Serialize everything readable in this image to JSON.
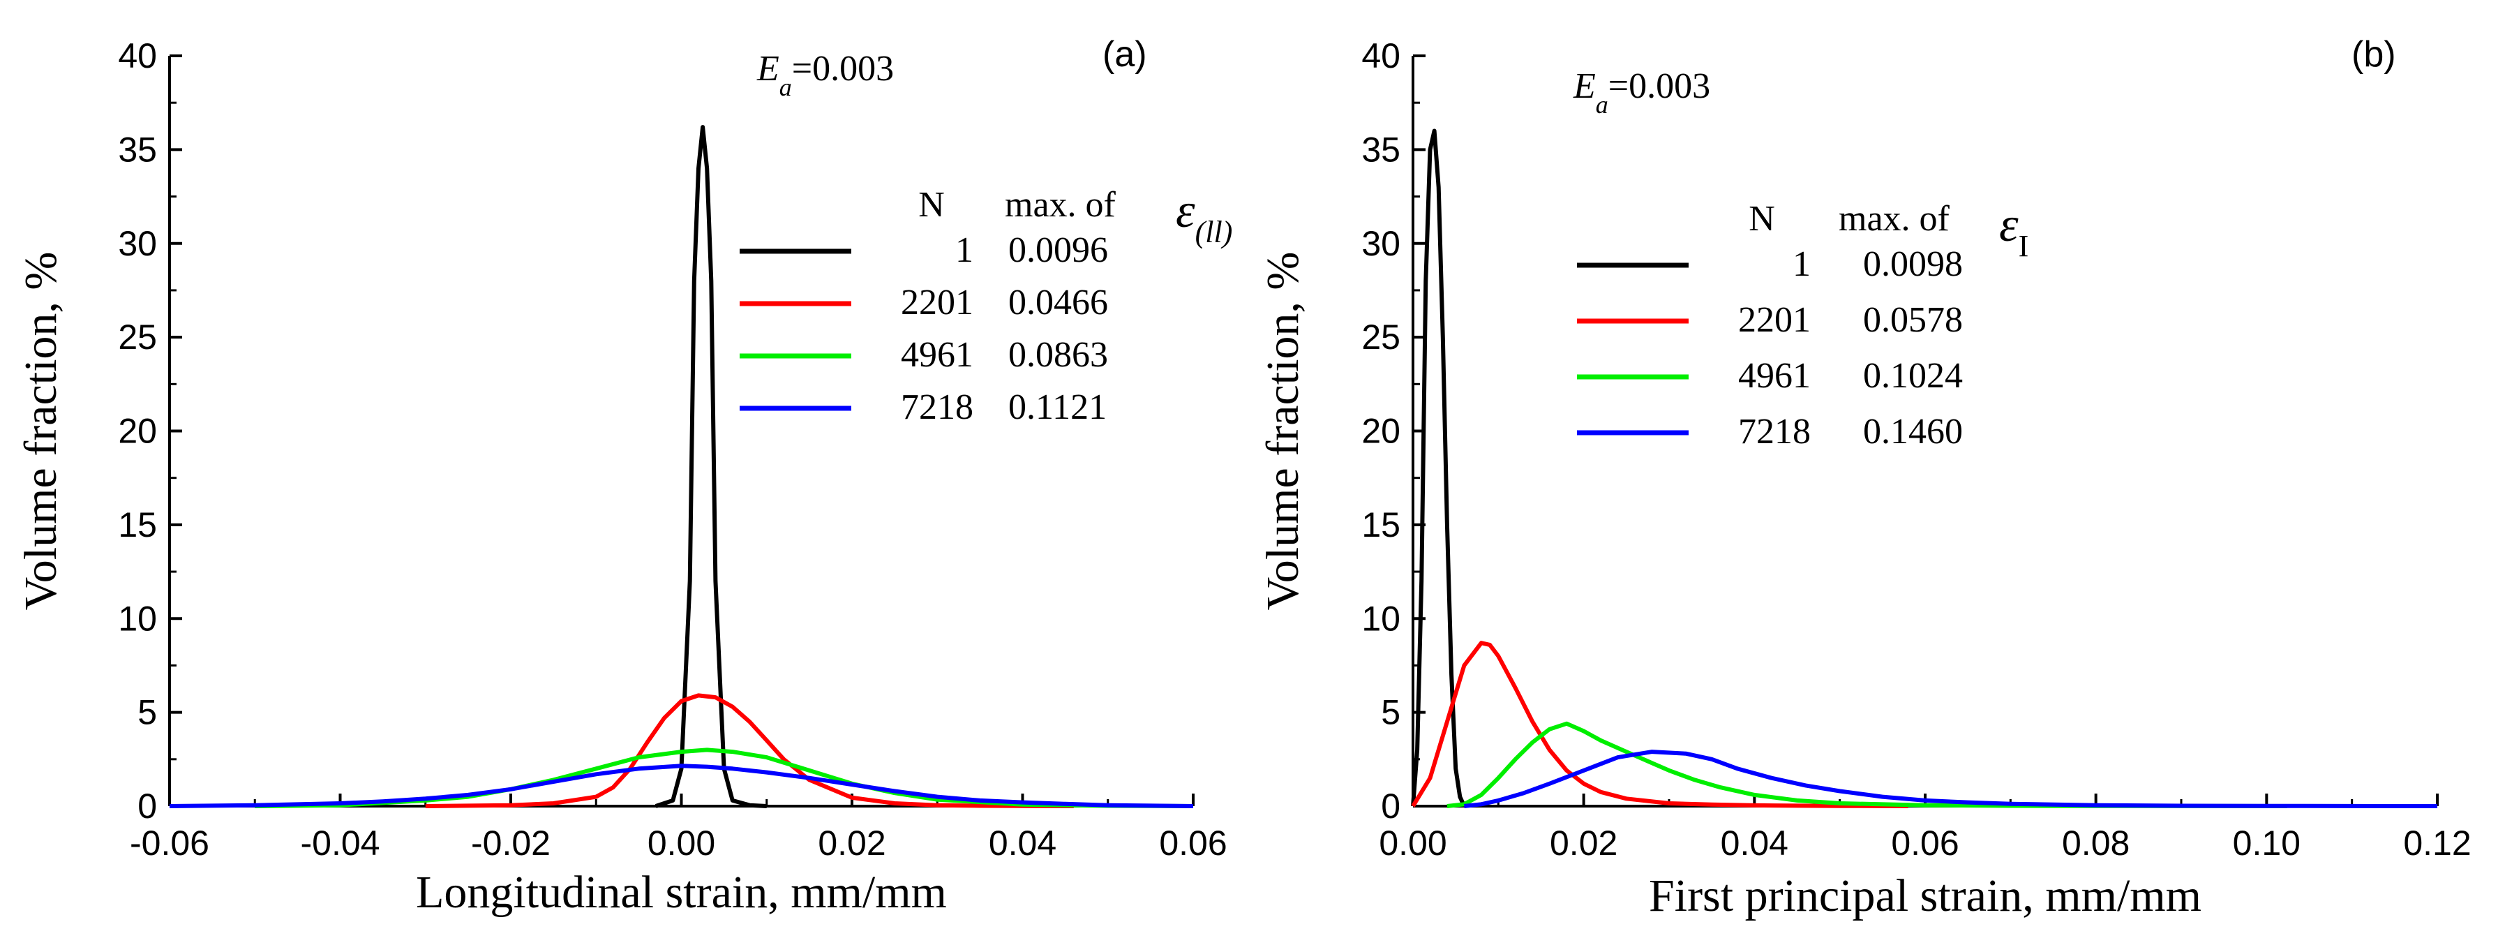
{
  "chart_data": [
    {
      "type": "line",
      "panel_label": "(a)",
      "xlabel": "Longitudinal strain, mm/mm",
      "ylabel": "Volume fraction, %",
      "xlim": [
        -0.06,
        0.06
      ],
      "ylim": [
        0,
        40
      ],
      "x_ticks": [
        -0.06,
        -0.04,
        -0.02,
        0.0,
        0.02,
        0.04,
        0.06
      ],
      "x_tick_labels": [
        "-0.06",
        "-0.04",
        "-0.02",
        "0.00",
        "0.02",
        "0.04",
        "0.06"
      ],
      "y_ticks": [
        0,
        5,
        10,
        15,
        20,
        25,
        30,
        35,
        40
      ],
      "y_tick_labels": [
        "0",
        "5",
        "10",
        "15",
        "20",
        "25",
        "30",
        "35",
        "40"
      ],
      "annotation": {
        "prefix": "E",
        "subscript": "a",
        "suffix": "=0.003"
      },
      "legend": {
        "header_n": "N",
        "header_max": "max. of",
        "header_symbol": "ε",
        "header_subscript": "(ll)"
      },
      "series": [
        {
          "name": "1",
          "max_label": "0.0096",
          "color": "#000000",
          "x": [
            -0.003,
            -0.001,
            0.0,
            0.001,
            0.0015,
            0.002,
            0.0025,
            0.003,
            0.0035,
            0.004,
            0.005,
            0.006,
            0.008,
            0.01
          ],
          "y": [
            0,
            0.3,
            2,
            12,
            28,
            34,
            36.2,
            34,
            28,
            12,
            2,
            0.3,
            0.05,
            0
          ]
        },
        {
          "name": "2201",
          "max_label": "0.0466",
          "color": "#ff0000",
          "x": [
            -0.03,
            -0.02,
            -0.015,
            -0.01,
            -0.008,
            -0.006,
            -0.004,
            -0.002,
            0.0,
            0.002,
            0.004,
            0.006,
            0.008,
            0.01,
            0.012,
            0.015,
            0.02,
            0.025,
            0.03,
            0.035,
            0.04,
            0.046
          ],
          "y": [
            0,
            0.05,
            0.15,
            0.5,
            1.0,
            2.0,
            3.4,
            4.7,
            5.6,
            5.9,
            5.8,
            5.3,
            4.5,
            3.5,
            2.5,
            1.4,
            0.45,
            0.15,
            0.05,
            0.02,
            0.01,
            0
          ]
        },
        {
          "name": "4961",
          "max_label": "0.0863",
          "color": "#00ee00",
          "x": [
            -0.05,
            -0.04,
            -0.03,
            -0.025,
            -0.02,
            -0.015,
            -0.01,
            -0.005,
            0.0,
            0.003,
            0.006,
            0.01,
            0.015,
            0.02,
            0.025,
            0.03,
            0.04,
            0.05,
            0.06
          ],
          "y": [
            0,
            0.05,
            0.3,
            0.5,
            0.9,
            1.4,
            2.0,
            2.6,
            2.9,
            3.0,
            2.9,
            2.6,
            1.9,
            1.2,
            0.7,
            0.35,
            0.08,
            0.02,
            0
          ]
        },
        {
          "name": "7218",
          "max_label": "0.1121",
          "color": "#0000ff",
          "x": [
            -0.06,
            -0.05,
            -0.04,
            -0.035,
            -0.03,
            -0.025,
            -0.02,
            -0.015,
            -0.01,
            -0.005,
            0.0,
            0.003,
            0.006,
            0.01,
            0.015,
            0.02,
            0.025,
            0.03,
            0.035,
            0.04,
            0.045,
            0.05,
            0.06
          ],
          "y": [
            0,
            0.05,
            0.15,
            0.25,
            0.4,
            0.6,
            0.9,
            1.3,
            1.7,
            2.0,
            2.15,
            2.1,
            2.0,
            1.8,
            1.5,
            1.15,
            0.8,
            0.5,
            0.3,
            0.2,
            0.12,
            0.05,
            0
          ]
        }
      ]
    },
    {
      "type": "line",
      "panel_label": "(b)",
      "xlabel": "First principal strain, mm/mm",
      "ylabel": "Volume fraction, %",
      "xlim": [
        0,
        0.12
      ],
      "ylim": [
        0,
        40
      ],
      "x_ticks": [
        0.0,
        0.02,
        0.04,
        0.06,
        0.08,
        0.1,
        0.12
      ],
      "x_tick_labels": [
        "0.00",
        "0.02",
        "0.04",
        "0.06",
        "0.08",
        "0.10",
        "0.12"
      ],
      "y_ticks": [
        0,
        5,
        10,
        15,
        20,
        25,
        30,
        35,
        40
      ],
      "y_tick_labels": [
        "0",
        "5",
        "10",
        "15",
        "20",
        "25",
        "30",
        "35",
        "40"
      ],
      "annotation": {
        "prefix": "E",
        "subscript": "a",
        "suffix": "=0.003"
      },
      "legend": {
        "header_n": "N",
        "header_max": "max. of",
        "header_symbol": "ε",
        "header_subscript": "I"
      },
      "series": [
        {
          "name": "1",
          "max_label": "0.0098",
          "color": "#000000",
          "x": [
            0.0,
            0.0005,
            0.001,
            0.0015,
            0.002,
            0.0025,
            0.003,
            0.0035,
            0.004,
            0.0045,
            0.005,
            0.0055,
            0.006
          ],
          "y": [
            0,
            3,
            12,
            28,
            35,
            36,
            33,
            25,
            15,
            7,
            2,
            0.5,
            0
          ]
        },
        {
          "name": "2201",
          "max_label": "0.0578",
          "color": "#ff0000",
          "x": [
            0.0,
            0.002,
            0.004,
            0.006,
            0.008,
            0.009,
            0.01,
            0.012,
            0.014,
            0.016,
            0.018,
            0.02,
            0.022,
            0.025,
            0.03,
            0.035,
            0.04,
            0.05,
            0.058
          ],
          "y": [
            0,
            1.5,
            4.5,
            7.5,
            8.7,
            8.6,
            8.0,
            6.3,
            4.5,
            3.0,
            1.9,
            1.2,
            0.75,
            0.4,
            0.15,
            0.08,
            0.04,
            0.01,
            0
          ]
        },
        {
          "name": "4961",
          "max_label": "0.1024",
          "color": "#00ee00",
          "x": [
            0.004,
            0.006,
            0.008,
            0.01,
            0.012,
            0.014,
            0.016,
            0.018,
            0.02,
            0.022,
            0.025,
            0.028,
            0.03,
            0.033,
            0.036,
            0.04,
            0.045,
            0.05,
            0.06,
            0.07,
            0.08,
            0.09,
            0.1024
          ],
          "y": [
            0,
            0.1,
            0.6,
            1.5,
            2.5,
            3.4,
            4.1,
            4.4,
            4.0,
            3.5,
            2.9,
            2.3,
            1.9,
            1.4,
            1.0,
            0.6,
            0.3,
            0.15,
            0.05,
            0.02,
            0.01,
            0.005,
            0
          ]
        },
        {
          "name": "7218",
          "max_label": "0.1460",
          "color": "#0000ff",
          "x": [
            0.006,
            0.008,
            0.01,
            0.013,
            0.016,
            0.02,
            0.024,
            0.028,
            0.032,
            0.035,
            0.038,
            0.042,
            0.046,
            0.05,
            0.055,
            0.06,
            0.065,
            0.07,
            0.08,
            0.09,
            0.1,
            0.11,
            0.12
          ],
          "y": [
            0,
            0.1,
            0.3,
            0.7,
            1.2,
            1.9,
            2.6,
            2.9,
            2.8,
            2.5,
            2.0,
            1.5,
            1.1,
            0.8,
            0.5,
            0.3,
            0.2,
            0.12,
            0.05,
            0.02,
            0.01,
            0.005,
            0
          ]
        }
      ]
    }
  ]
}
